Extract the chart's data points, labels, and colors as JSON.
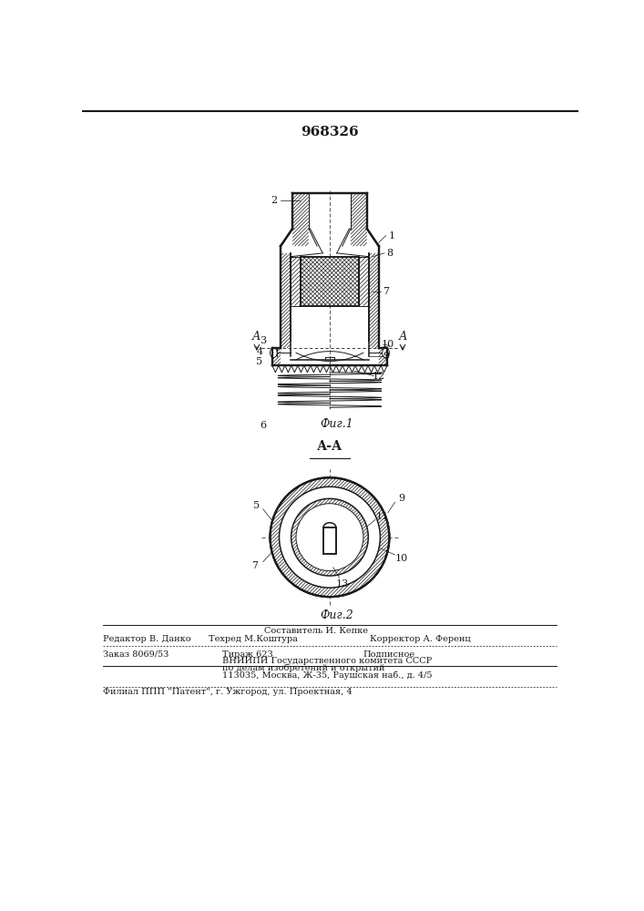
{
  "patent_number": "968326",
  "fig1_label": "Фиг.1",
  "fig2_label": "Фиг.2",
  "section_label": "А-А",
  "background_color": "#ffffff",
  "line_color": "#1a1a1a",
  "footer_line1": "Составитель И. Кепке",
  "footer_editor": "Редактор В. Данко",
  "footer_tekhred": "Техред М.Коштура",
  "footer_korrektor": "Корректор А. Ференц",
  "footer_zakaz": "Заказ 8069/53",
  "footer_tirazh": "Тираж 623",
  "footer_podpisnoe": "Подписное",
  "footer_vniipи": "ВНИИПИ Государственного комитета СССР",
  "footer_dela": "по делам изобретений и открытий",
  "footer_adres": "113035, Москва, Ж-35, Раушская наб., д. 4/5",
  "footer_filial": "Филиал ППП \"Патент\", г. Ужгород, ул. Проектная, 4"
}
